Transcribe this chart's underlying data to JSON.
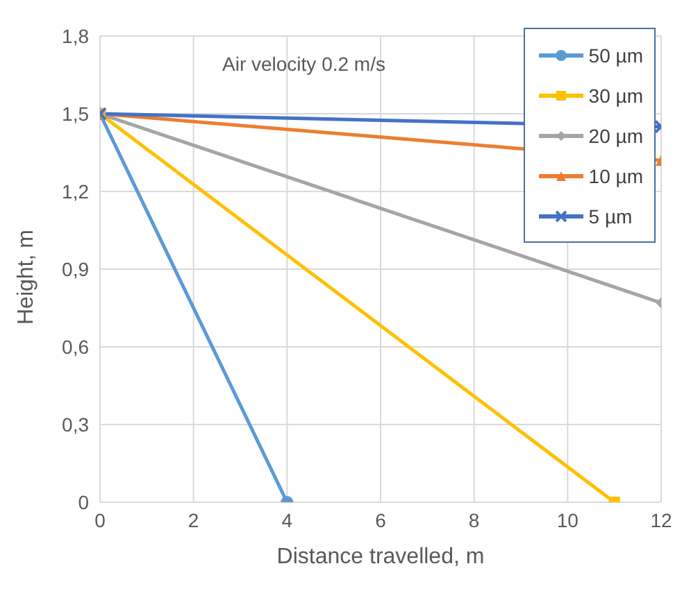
{
  "chart_data": {
    "type": "line",
    "xlabel": "Distance travelled, m",
    "ylabel": "Height, m",
    "annotations": [
      "Air velocity 0.2 m/s"
    ],
    "xlim": [
      0,
      12
    ],
    "xticks": [
      0,
      2,
      4,
      6,
      8,
      10,
      12
    ],
    "ylim": [
      0,
      1.8
    ],
    "yticks": [
      0,
      {
        "value": 0.3,
        "label": "0,3"
      },
      {
        "value": 0.6,
        "label": "0,6"
      },
      {
        "value": 0.9,
        "label": "0,9"
      },
      {
        "value": 1.2,
        "label": "1,2"
      },
      {
        "value": 1.5,
        "label": "1,5"
      },
      {
        "value": 1.8,
        "label": "1,8"
      }
    ],
    "grid": true,
    "legend": "top right",
    "line_style": "solid",
    "series": [
      {
        "name": "50 µm",
        "color": "#5b9bd5",
        "marker": "circle",
        "x": [
          0,
          4
        ],
        "values": [
          1.5,
          0
        ]
      },
      {
        "name": "30 µm",
        "color": "#ffc000",
        "marker": "square",
        "x": [
          0,
          11
        ],
        "values": [
          1.5,
          0
        ]
      },
      {
        "name": "20 µm",
        "color": "#a5a5a5",
        "marker": "diamond",
        "x": [
          0,
          12
        ],
        "values": [
          1.5,
          0.77
        ]
      },
      {
        "name": "10 µm",
        "color": "#ed7d31",
        "marker": "triangle",
        "x": [
          0,
          12
        ],
        "values": [
          1.5,
          1.32
        ]
      },
      {
        "name": "5 µm",
        "color": "#4472c4",
        "marker": "cross",
        "x": [
          0,
          12
        ],
        "values": [
          1.5,
          1.45
        ]
      }
    ]
  }
}
